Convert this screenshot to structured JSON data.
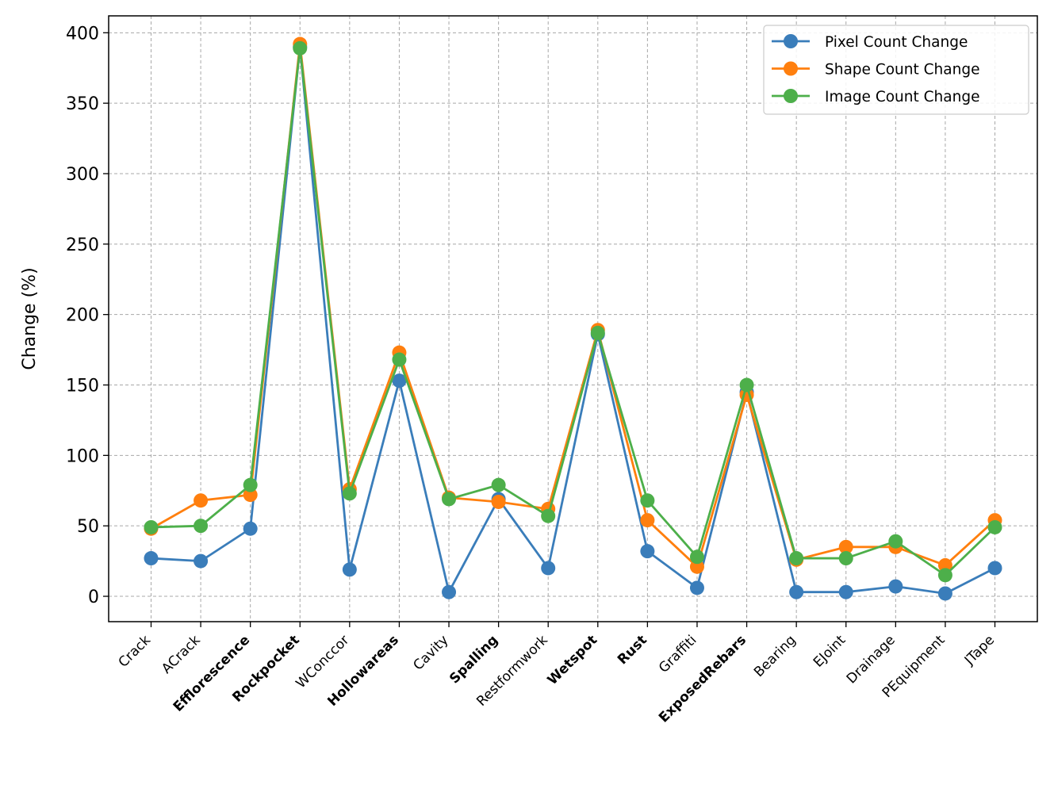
{
  "chart_data": {
    "type": "line",
    "title": "",
    "xlabel": "",
    "ylabel": "Change (%)",
    "ylim": [
      -18,
      412
    ],
    "yticks": [
      0,
      50,
      100,
      150,
      200,
      250,
      300,
      350,
      400
    ],
    "grid": true,
    "legend_position": "top-right",
    "categories": [
      "Crack",
      "ACrack",
      "Efflorescence",
      "Rockpocket",
      "WConccor",
      "Hollowareas",
      "Cavity",
      "Spalling",
      "Restformwork",
      "Wetspot",
      "Rust",
      "Graffiti",
      "ExposedRebars",
      "Bearing",
      "EJoint",
      "Drainage",
      "PEquipment",
      "JTape"
    ],
    "bold_categories": [
      "Efflorescence",
      "Rockpocket",
      "Hollowareas",
      "Spalling",
      "Wetspot",
      "Rust",
      "ExposedRebars"
    ],
    "series": [
      {
        "name": "Pixel Count Change",
        "color": "#3a7dba",
        "values": [
          27,
          25,
          48,
          390,
          19,
          153,
          3,
          69,
          20,
          186,
          32,
          6,
          145,
          3,
          3,
          7,
          2,
          20
        ]
      },
      {
        "name": "Shape Count Change",
        "color": "#ff7f0e",
        "values": [
          48,
          68,
          72,
          392,
          76,
          173,
          70,
          67,
          62,
          189,
          54,
          21,
          143,
          26,
          35,
          35,
          22,
          54
        ]
      },
      {
        "name": "Image Count Change",
        "color": "#4daf4a",
        "values": [
          49,
          50,
          79,
          389,
          73,
          168,
          69,
          79,
          57,
          187,
          68,
          28,
          150,
          27,
          27,
          39,
          15,
          49
        ]
      }
    ]
  }
}
